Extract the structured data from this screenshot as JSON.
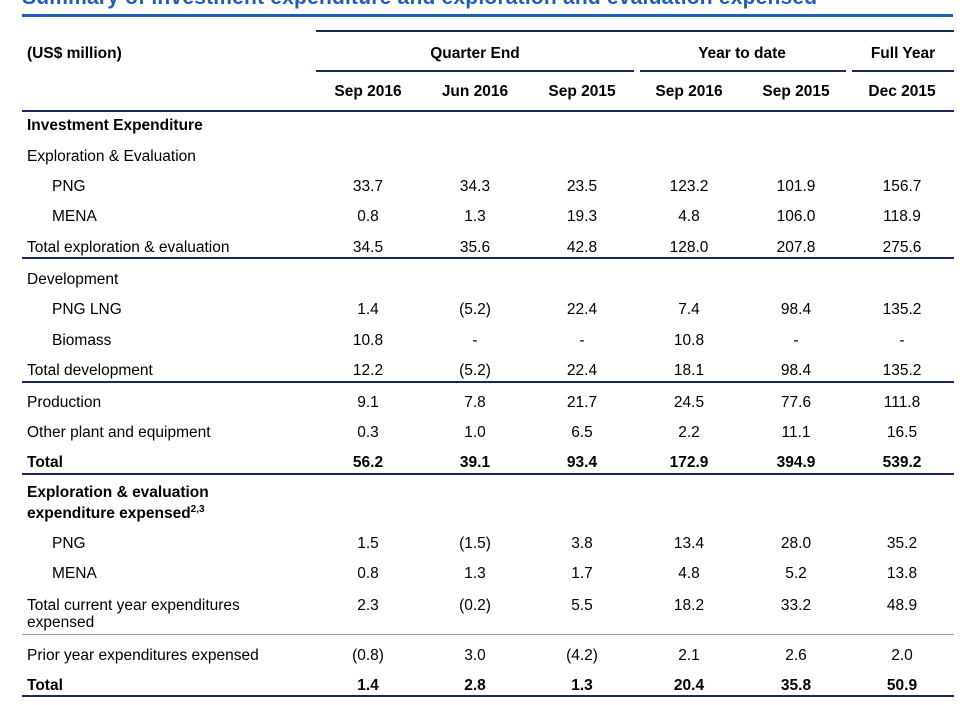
{
  "title": "Summary of investment expenditure and exploration and evaluation expensed",
  "units": "(US$ million)",
  "column_groups": [
    {
      "key": "quarter_end",
      "label": "Quarter End"
    },
    {
      "key": "year_to_date",
      "label": "Year to date"
    },
    {
      "key": "full_year",
      "label": "Full Year"
    }
  ],
  "columns": [
    "Sep 2016",
    "Jun 2016",
    "Sep 2015",
    "Sep 2016",
    "Sep 2015",
    "Dec 2015"
  ],
  "rows": [
    {
      "label": "Investment Expenditure",
      "style": "section",
      "values": [
        "",
        "",
        "",
        "",
        "",
        ""
      ]
    },
    {
      "label": "Exploration & Evaluation",
      "style": "sub",
      "values": [
        "",
        "",
        "",
        "",
        "",
        ""
      ]
    },
    {
      "label": "PNG",
      "style": "indent",
      "values": [
        "33.7",
        "34.3",
        "23.5",
        "123.2",
        "101.9",
        "156.7"
      ]
    },
    {
      "label": "MENA",
      "style": "indent",
      "values": [
        "0.8",
        "1.3",
        "19.3",
        "4.8",
        "106.0",
        "118.9"
      ]
    },
    {
      "label": "Total exploration & evaluation",
      "style": "total",
      "values": [
        "34.5",
        "35.6",
        "42.8",
        "128.0",
        "207.8",
        "275.6"
      ]
    },
    {
      "label": "Development",
      "style": "sub",
      "values": [
        "",
        "",
        "",
        "",
        "",
        ""
      ]
    },
    {
      "label": "PNG LNG",
      "style": "indent",
      "values": [
        "1.4",
        "(5.2)",
        "22.4",
        "7.4",
        "98.4",
        "135.2"
      ]
    },
    {
      "label": "Biomass",
      "style": "indent",
      "values": [
        "10.8",
        "-",
        "-",
        "10.8",
        "-",
        "-"
      ]
    },
    {
      "label": "Total development",
      "style": "total",
      "values": [
        "12.2",
        "(5.2)",
        "22.4",
        "18.1",
        "98.4",
        "135.2"
      ]
    },
    {
      "label": "Production",
      "style": "plain",
      "values": [
        "9.1",
        "7.8",
        "21.7",
        "24.5",
        "77.6",
        "111.8"
      ]
    },
    {
      "label": "Other plant and equipment",
      "style": "plain",
      "values": [
        "0.3",
        "1.0",
        "6.5",
        "2.2",
        "11.1",
        "16.5"
      ]
    },
    {
      "label": "Total",
      "style": "grand",
      "values": [
        "56.2",
        "39.1",
        "93.4",
        "172.9",
        "394.9",
        "539.2"
      ]
    },
    {
      "label": "Exploration & evaluation",
      "label2": "expenditure expensed",
      "sup": "2,3",
      "style": "section2",
      "values": [
        "",
        "",
        "",
        "",
        "",
        ""
      ]
    },
    {
      "label": "PNG",
      "style": "indent",
      "values": [
        "1.5",
        "(1.5)",
        "3.8",
        "13.4",
        "28.0",
        "35.2"
      ]
    },
    {
      "label": "MENA",
      "style": "indent",
      "values": [
        "0.8",
        "1.3",
        "1.7",
        "4.8",
        "5.2",
        "13.8"
      ]
    },
    {
      "label": "Total current year expenditures",
      "label2": "expensed",
      "style": "total2",
      "values": [
        "2.3",
        "(0.2)",
        "5.5",
        "18.2",
        "33.2",
        "48.9"
      ]
    },
    {
      "label": "Prior year expenditures expensed",
      "style": "plain",
      "values": [
        "(0.8)",
        "3.0",
        "(4.2)",
        "2.1",
        "2.6",
        "2.0"
      ]
    },
    {
      "label": "Total",
      "style": "grand",
      "values": [
        "1.4",
        "2.8",
        "1.3",
        "20.4",
        "35.8",
        "50.9"
      ]
    }
  ]
}
